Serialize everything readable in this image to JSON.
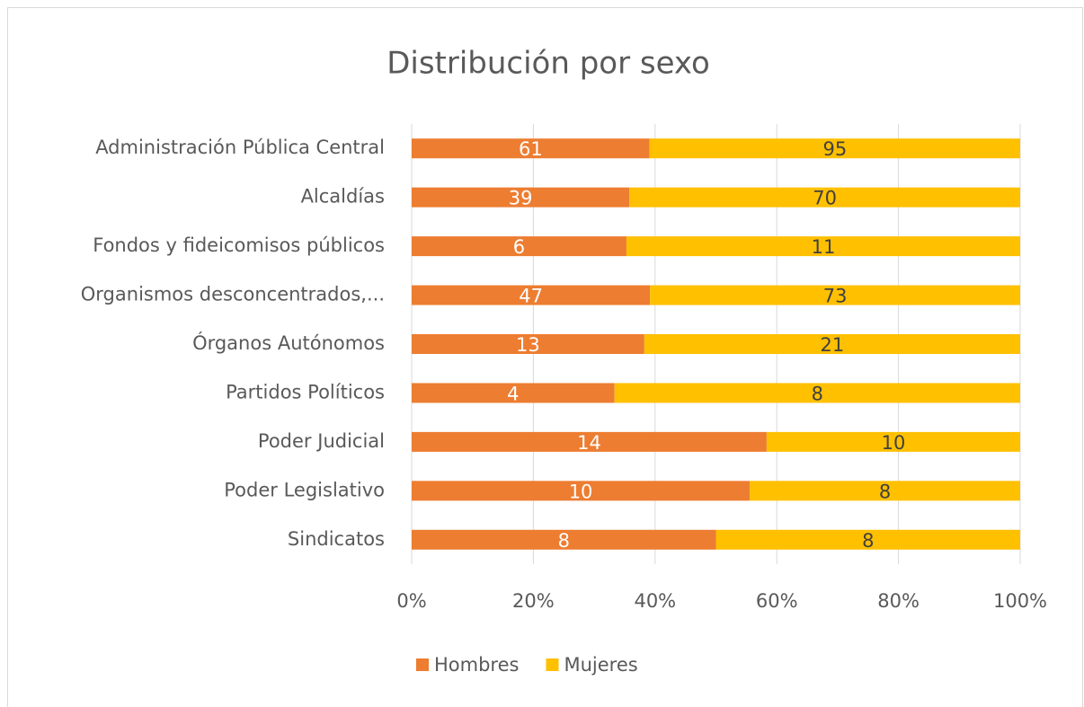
{
  "chart_data": {
    "type": "stacked_percent_barh",
    "title": "Distribución por sexo",
    "categories": [
      "Administración Pública Central",
      "Alcaldías",
      "Fondos y fideicomisos públicos",
      "Organismos desconcentrados,...",
      "Órganos Autónomos",
      "Partidos Políticos",
      "Poder Judicial",
      "Poder Legislativo",
      "Sindicatos"
    ],
    "series": [
      {
        "name": "Hombres",
        "color": "#ed7d31",
        "values": [
          61,
          39,
          6,
          47,
          13,
          4,
          14,
          10,
          8
        ]
      },
      {
        "name": "Mujeres",
        "color": "#ffc000",
        "values": [
          95,
          70,
          11,
          73,
          21,
          8,
          10,
          8,
          8
        ]
      }
    ],
    "xlim": [
      0,
      100
    ],
    "xticks": [
      {
        "value": 0,
        "label": "0%"
      },
      {
        "value": 20,
        "label": "20%"
      },
      {
        "value": 40,
        "label": "40%"
      },
      {
        "value": 60,
        "label": "60%"
      },
      {
        "value": 80,
        "label": "80%"
      },
      {
        "value": 100,
        "label": "100%"
      }
    ],
    "grid": true,
    "legend": "bottom"
  }
}
